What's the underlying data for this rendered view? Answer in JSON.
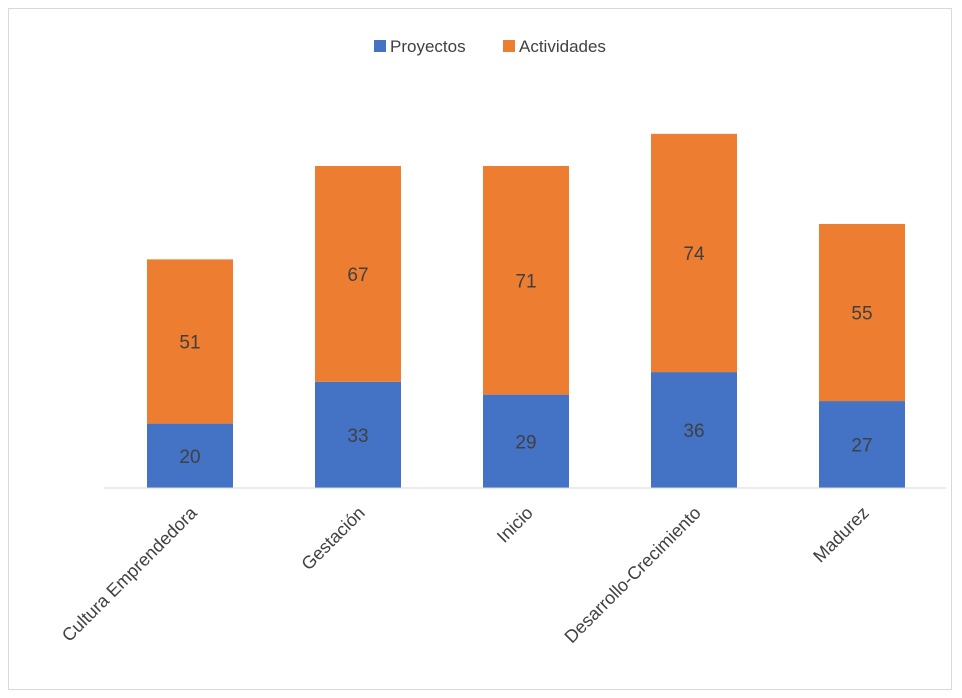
{
  "chart_data": {
    "type": "bar",
    "stacked": true,
    "categories": [
      "Cultura Emprendedora",
      "Gestación",
      "Inicio",
      "Desarrollo-Crecimiento",
      "Madurez"
    ],
    "series": [
      {
        "name": "Proyectos",
        "values": [
          20,
          33,
          29,
          36,
          27
        ],
        "color": "#4472c4"
      },
      {
        "name": "Actividades",
        "values": [
          51,
          67,
          71,
          74,
          55
        ],
        "color": "#ed7d31"
      }
    ],
    "title": "",
    "xlabel": "",
    "ylabel": "",
    "ylim": [
      0,
      110
    ],
    "grid": false,
    "legend": "top-center",
    "label_color": "#404040",
    "axis_color": "#d9d9d9"
  }
}
